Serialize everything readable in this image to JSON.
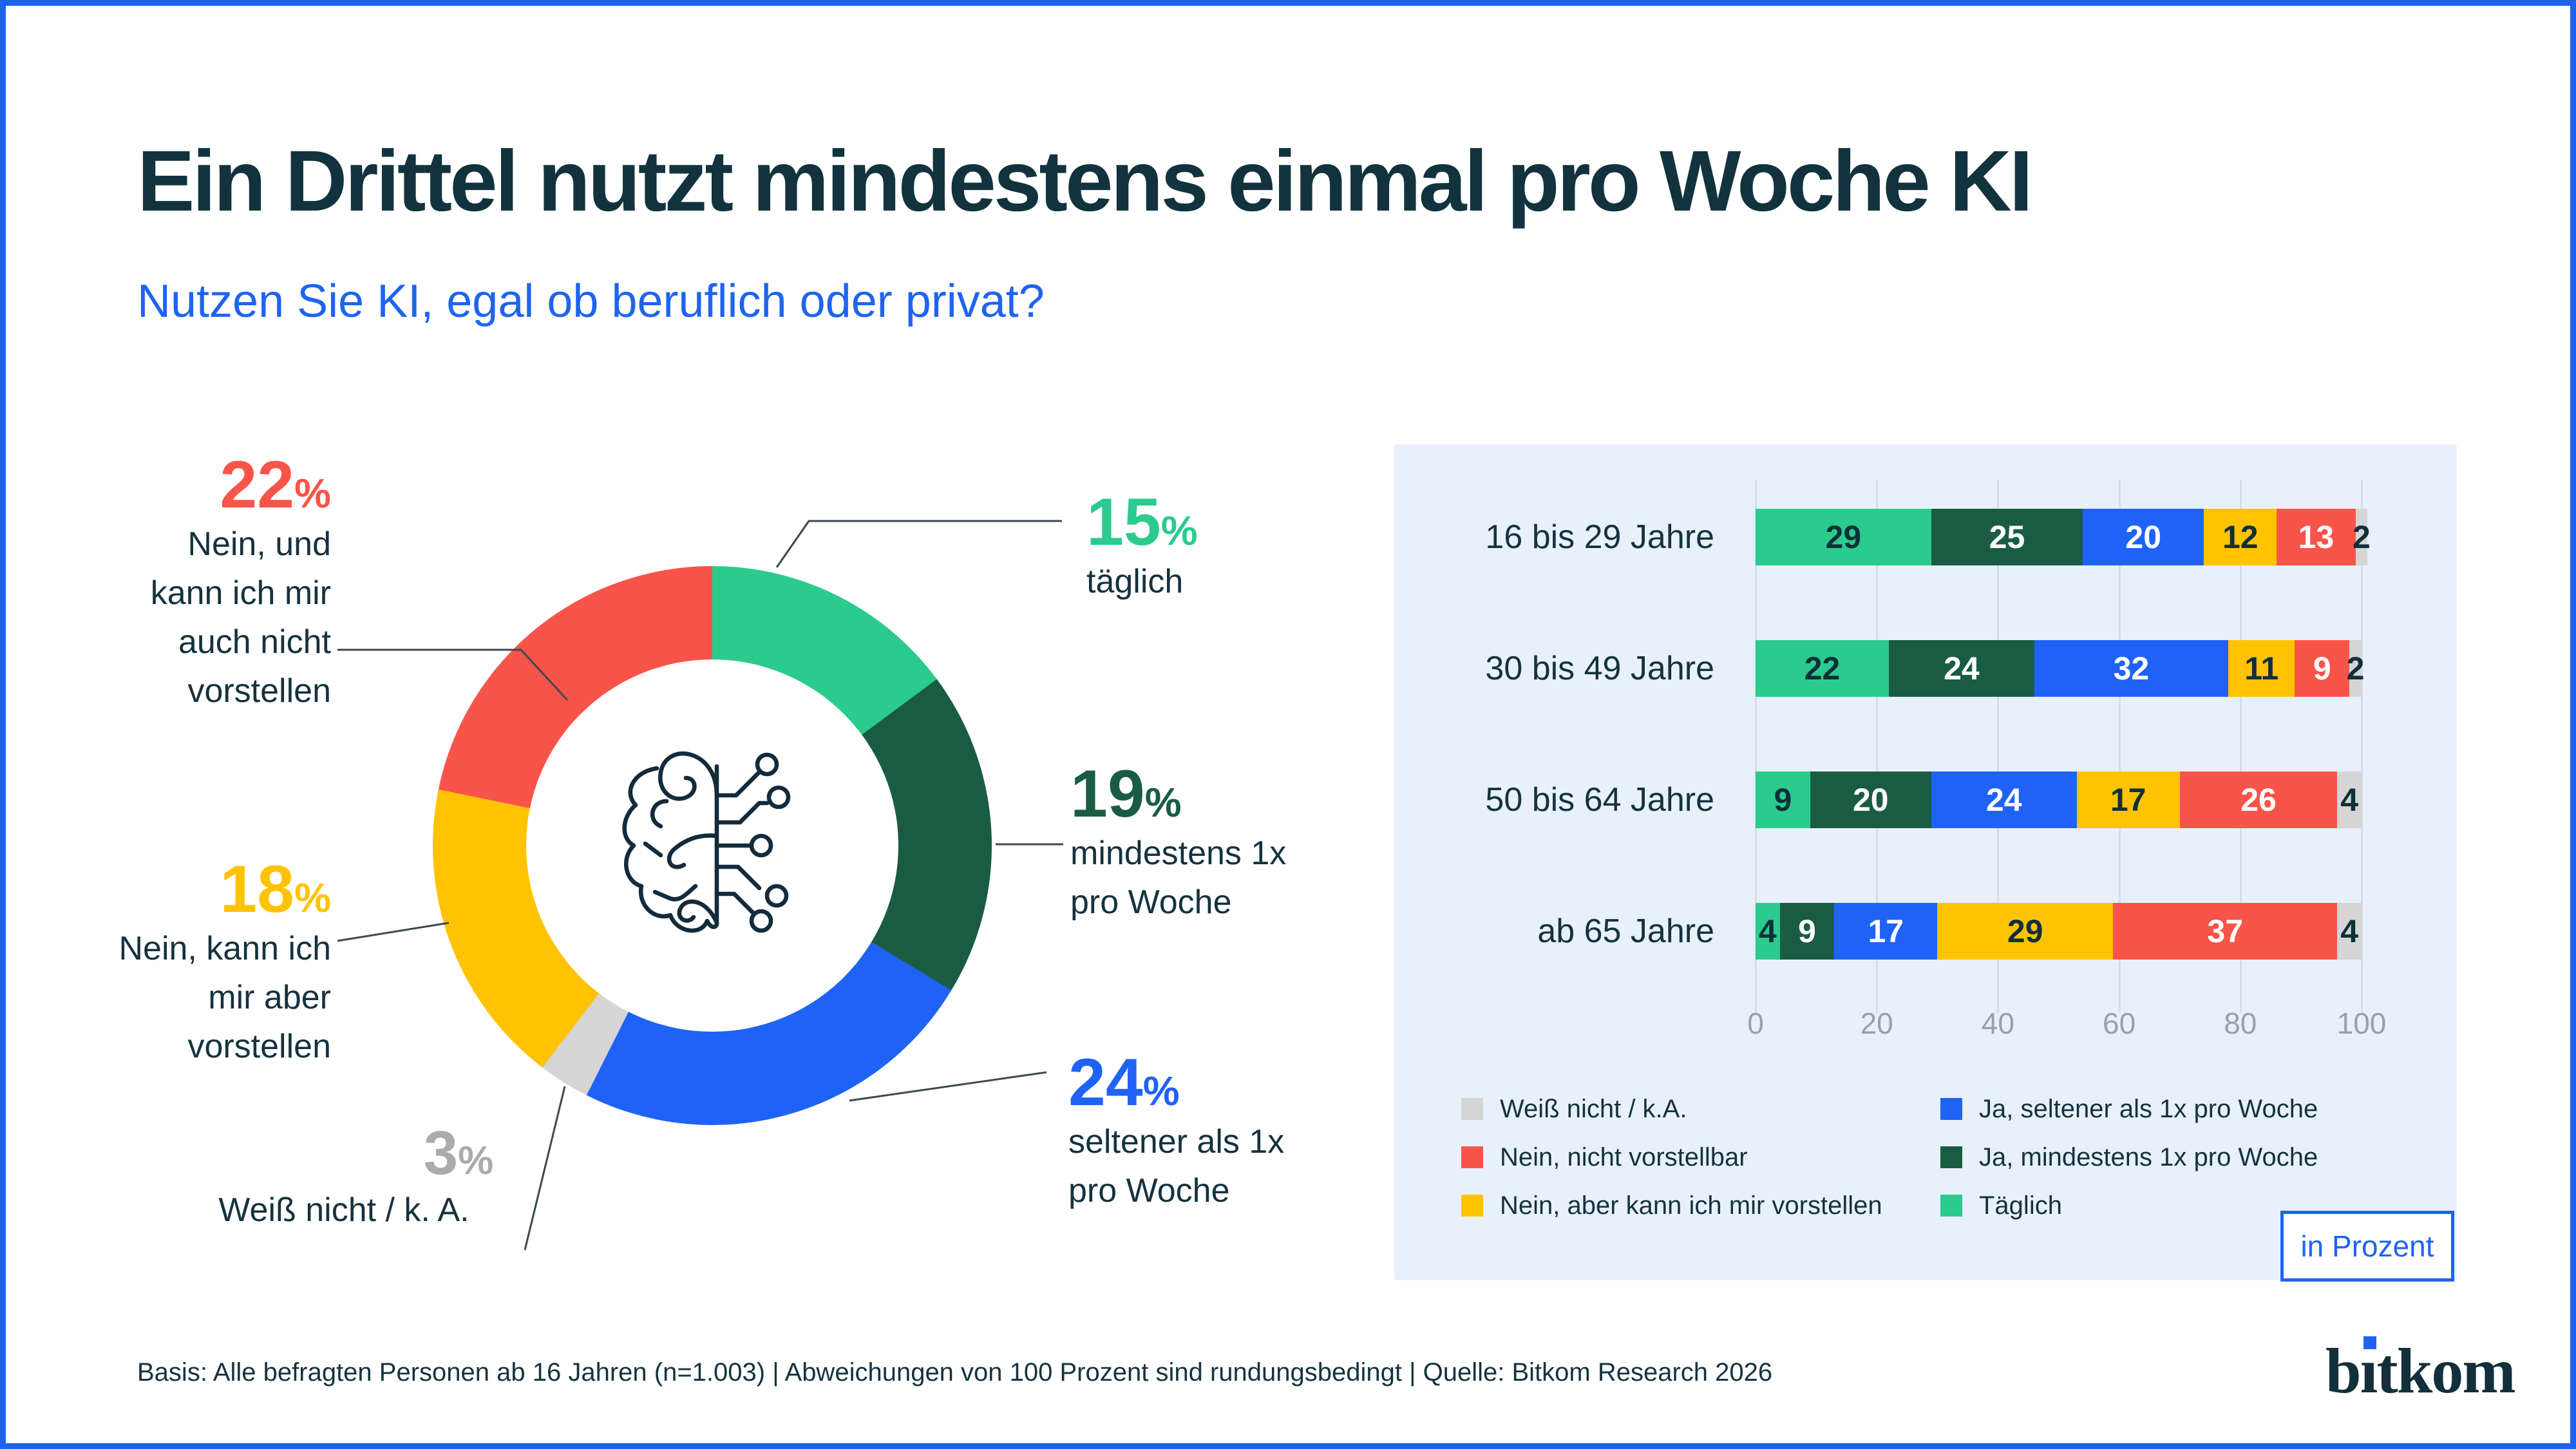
{
  "frame": {
    "border_color": "#1F62F0"
  },
  "header": {
    "title": "Ein Drittel nutzt mindestens einmal pro Woche KI",
    "subtitle": "Nutzen Sie KI, egal ob beruflich oder privat?"
  },
  "colors": {
    "taeglich": "#2BCB8E",
    "ja_mind_1x": "#1A5C43",
    "ja_seltener_1x": "#1F63F6",
    "nein_vorstellbar": "#FFC303",
    "nein_nicht_vorstellbar": "#F9544A",
    "weiss_nicht": "#D5D5D5",
    "accent_blue": "#1F64F0",
    "dark_text": "#15323E",
    "gray_label": "#ABABAB",
    "panel_bg": "#E8F1FB"
  },
  "chart_data": [
    {
      "type": "pie",
      "subtype": "donut",
      "title": "Nutzen Sie KI, egal ob beruflich oder privat?",
      "unit": "Prozent",
      "start_angle_deg": 0,
      "direction": "clockwise",
      "segments": [
        {
          "label": "täglich",
          "value": 15,
          "color": "#2BCB8E"
        },
        {
          "label": "mindestens 1x pro Woche",
          "value": 19,
          "color": "#1A5C43"
        },
        {
          "label": "seltener als 1x pro Woche",
          "value": 24,
          "color": "#1F63F6"
        },
        {
          "label": "Weiß nicht / k. A.",
          "value": 3,
          "color": "#D5D5D5"
        },
        {
          "label": "Nein, kann ich mir aber vorstellen",
          "value": 18,
          "color": "#FFC303"
        },
        {
          "label": "Nein, und kann ich mir auch nicht vorstellen",
          "value": 22,
          "color": "#F9544A"
        }
      ]
    },
    {
      "type": "bar",
      "subtype": "stacked-horizontal",
      "unit_label": "in Prozent",
      "categories": [
        "16 bis 29 Jahre",
        "30 bis 49 Jahre",
        "50 bis 64 Jahre",
        "ab 65 Jahre"
      ],
      "series": [
        {
          "name": "Täglich",
          "color": "#2BCB8E",
          "text_color": "#0F3038",
          "values": [
            29,
            22,
            9,
            4
          ]
        },
        {
          "name": "Ja, mindestens 1x pro Woche",
          "color": "#1A5C43",
          "text_color": "#FFFFFF",
          "values": [
            25,
            24,
            20,
            9
          ]
        },
        {
          "name": "Ja, seltener als 1x pro Woche",
          "color": "#1F63F6",
          "text_color": "#FFFFFF",
          "values": [
            20,
            32,
            24,
            17
          ]
        },
        {
          "name": "Nein, aber kann ich mir vorstellen",
          "color": "#FFC303",
          "text_color": "#0F3038",
          "values": [
            12,
            11,
            17,
            29
          ]
        },
        {
          "name": "Nein, nicht vorstellbar",
          "color": "#F9544A",
          "text_color": "#FFFFFF",
          "values": [
            13,
            9,
            26,
            37
          ]
        },
        {
          "name": "Weiß nicht / k.A.",
          "color": "#D5D5D5",
          "text_color": "#0F3038",
          "values": [
            2,
            2,
            4,
            4
          ]
        }
      ],
      "x_ticks": [
        0,
        20,
        40,
        60,
        80,
        100
      ],
      "x_range": [
        0,
        100
      ],
      "grid": true,
      "legend_position": "bottom"
    }
  ],
  "donut_callouts": {
    "left": [
      {
        "value": "22",
        "suffix": "%",
        "color": "#F9544A",
        "text": "Nein, und kann ich mir auch nicht vorstellen"
      },
      {
        "value": "18",
        "suffix": "%",
        "color": "#FFC303",
        "text": "Nein, kann ich mir aber vorstellen"
      },
      {
        "value": "3",
        "suffix": "%",
        "color": "#ABABAB",
        "text": "Weiß nicht / k. A."
      }
    ],
    "right": [
      {
        "value": "15",
        "suffix": "%",
        "color": "#2BCB8E",
        "text": "täglich"
      },
      {
        "value": "19",
        "suffix": "%",
        "color": "#1A5C43",
        "text": "mindestens 1x pro Woche"
      },
      {
        "value": "24",
        "suffix": "%",
        "color": "#1F63F6",
        "text": "seltener als 1x pro Woche"
      }
    ]
  },
  "legend": {
    "columns": [
      [
        {
          "label": "Weiß nicht / k.A.",
          "color": "#D5D5D5"
        },
        {
          "label": "Nein, nicht vorstellbar",
          "color": "#F9544A"
        },
        {
          "label": "Nein, aber kann ich mir vorstellen",
          "color": "#FFC303"
        }
      ],
      [
        {
          "label": "Ja, seltener als 1x pro Woche",
          "color": "#1F63F6"
        },
        {
          "label": "Ja, mindestens 1x pro Woche",
          "color": "#1A5C43"
        },
        {
          "label": "Täglich",
          "color": "#2BCB8E"
        }
      ]
    ]
  },
  "badge": {
    "label": "in Prozent"
  },
  "footer": {
    "text": "Basis: Alle befragten Personen ab 16 Jahren (n=1.003) | Abweichungen von 100 Prozent sind rundungsbedingt | Quelle: Bitkom Research 2026"
  },
  "logo": {
    "text": "bitkom",
    "part_b": "b",
    "part_i_dotless": "ı",
    "part_rest": "tkom",
    "dot_color": "#1F64F0"
  }
}
